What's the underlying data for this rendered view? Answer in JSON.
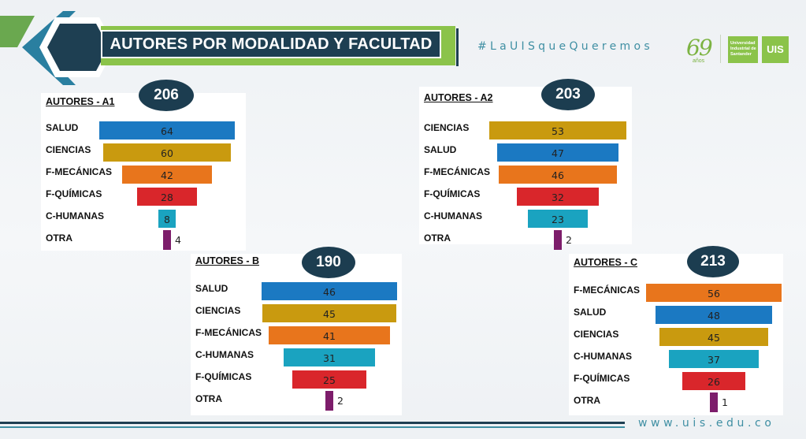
{
  "header": {
    "title": "AUTORES POR MODALIDAD Y FACULTAD",
    "hashtag": "#LaUISqueQueremos",
    "anniversary": {
      "number": "69",
      "word": "años"
    },
    "university": "Universidad Industrial de Santander",
    "logo_short": "UIS"
  },
  "footer": {
    "url": "www.uis.edu.co"
  },
  "colors": {
    "SALUD": "#1b79c2",
    "CIENCIAS": "#c99a0f",
    "F-MECÁNICAS": "#e8751c",
    "F-QUÍMICAS": "#d9262b",
    "C-HUMANAS": "#1aa3c0",
    "OTRA": "#7d1d6b"
  },
  "chart_data": [
    {
      "type": "bar",
      "title": "AUTORES - A1",
      "total": "206",
      "categories": [
        "SALUD",
        "CIENCIAS",
        "F-MECÁNICAS",
        "F-QUÍMICAS",
        "C-HUMANAS",
        "OTRA"
      ],
      "values": [
        64,
        60,
        42,
        28,
        8,
        4
      ]
    },
    {
      "type": "bar",
      "title": "AUTORES - A2",
      "total": "203",
      "categories": [
        "CIENCIAS",
        "SALUD",
        "F-MECÁNICAS",
        "F-QUÍMICAS",
        "C-HUMANAS",
        "OTRA"
      ],
      "values": [
        53,
        47,
        46,
        32,
        23,
        2
      ]
    },
    {
      "type": "bar",
      "title": "AUTORES - B",
      "total": "190",
      "categories": [
        "SALUD",
        "CIENCIAS",
        "F-MECÁNICAS",
        "C-HUMANAS",
        "F-QUÍMICAS",
        "OTRA"
      ],
      "values": [
        46,
        45,
        41,
        31,
        25,
        2
      ]
    },
    {
      "type": "bar",
      "title": "AUTORES - C",
      "total": "213",
      "categories": [
        "F-MECÁNICAS",
        "SALUD",
        "CIENCIAS",
        "C-HUMANAS",
        "F-QUÍMICAS",
        "OTRA"
      ],
      "values": [
        56,
        48,
        45,
        37,
        26,
        1
      ]
    }
  ]
}
